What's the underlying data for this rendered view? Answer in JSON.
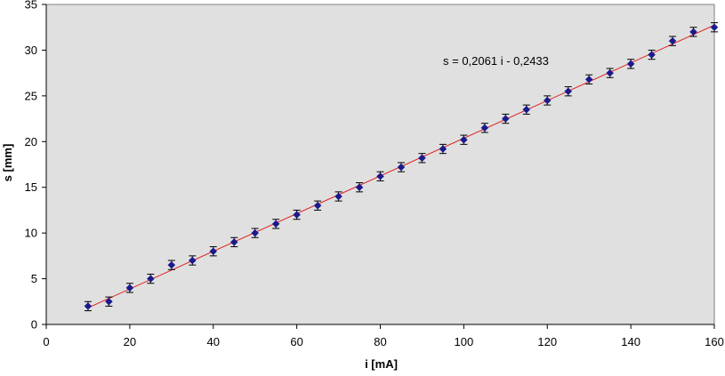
{
  "chart_data": {
    "type": "scatter",
    "title": "",
    "xlabel": "i [mA]",
    "ylabel": "s [mm]",
    "xlim": [
      0,
      160
    ],
    "ylim": [
      0,
      35
    ],
    "x_ticks": [
      0,
      20,
      40,
      60,
      80,
      100,
      120,
      140,
      160
    ],
    "y_ticks": [
      0,
      5,
      10,
      15,
      20,
      25,
      30,
      35
    ],
    "grid": false,
    "legend": "none",
    "background_color": "#e0e0e0",
    "marker_color": "#1a1a8c",
    "trendline_color": "#e02020",
    "error_bar_half_width": 0.5,
    "series": [
      {
        "x": [
          10,
          15,
          20,
          25,
          30,
          35,
          40,
          45,
          50,
          55,
          60,
          65,
          70,
          75,
          80,
          85,
          90,
          95,
          100,
          105,
          110,
          115,
          120,
          125,
          130,
          135,
          140,
          145,
          150,
          155,
          160
        ],
        "y": [
          2.0,
          2.5,
          4.0,
          5.0,
          6.5,
          7.0,
          8.0,
          9.0,
          10.0,
          11.0,
          12.0,
          13.0,
          14.0,
          15.0,
          16.2,
          17.2,
          18.2,
          19.2,
          20.2,
          21.5,
          22.5,
          23.5,
          24.5,
          25.5,
          26.8,
          27.5,
          28.5,
          29.5,
          31.0,
          32.0,
          32.5
        ]
      }
    ],
    "trendline": {
      "slope": 0.2061,
      "intercept": -0.2433
    },
    "annotation": "s = 0,2061 i - 0,2433"
  }
}
